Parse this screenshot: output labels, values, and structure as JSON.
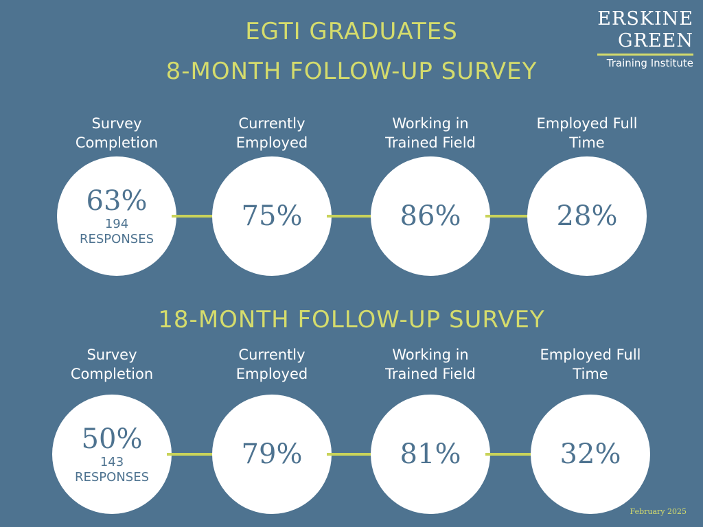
{
  "header": {
    "title": "EGTI GRADUATES"
  },
  "logo": {
    "line1": "ERSKINE",
    "line2": "GREEN",
    "tagline": "Training Institute"
  },
  "sections": [
    {
      "title": "8-MONTH FOLLOW-UP SURVEY",
      "items": [
        {
          "label": "Survey Completion",
          "value": "63%",
          "count": "194",
          "unit": "RESPONSES"
        },
        {
          "label": "Currently Employed",
          "value": "75%"
        },
        {
          "label": "Working in Trained Field",
          "value": "86%"
        },
        {
          "label": "Employed Full Time",
          "value": "28%"
        }
      ]
    },
    {
      "title": "18-MONTH FOLLOW-UP SURVEY",
      "items": [
        {
          "label": "Survey Completion",
          "value": "50%",
          "count": "143",
          "unit": "RESPONSES"
        },
        {
          "label": "Currently Employed",
          "value": "79%"
        },
        {
          "label": "Working in Trained Field",
          "value": "81%"
        },
        {
          "label": "Employed Full Time",
          "value": "32%"
        }
      ]
    }
  ],
  "footer": {
    "date": "February 2025"
  }
}
